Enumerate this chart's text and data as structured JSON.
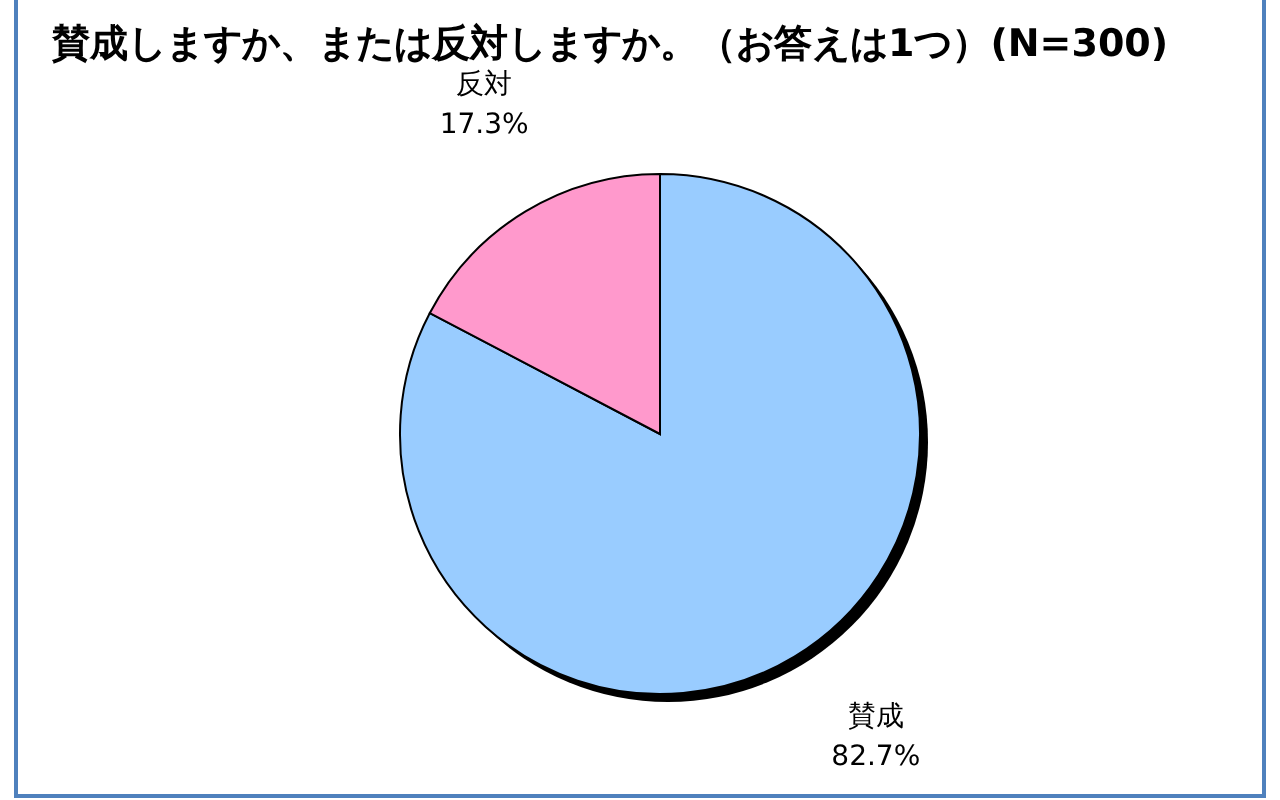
{
  "chart_data": {
    "type": "pie",
    "title": "賛成しますか、または反対しますか。（お答えは1つ）(N=300)",
    "categories": [
      "賛成",
      "反対"
    ],
    "values": [
      82.7,
      17.3
    ],
    "colors": [
      "#99ccff",
      "#ff99cc"
    ],
    "value_labels": [
      "82.7%",
      "17.3%"
    ]
  }
}
